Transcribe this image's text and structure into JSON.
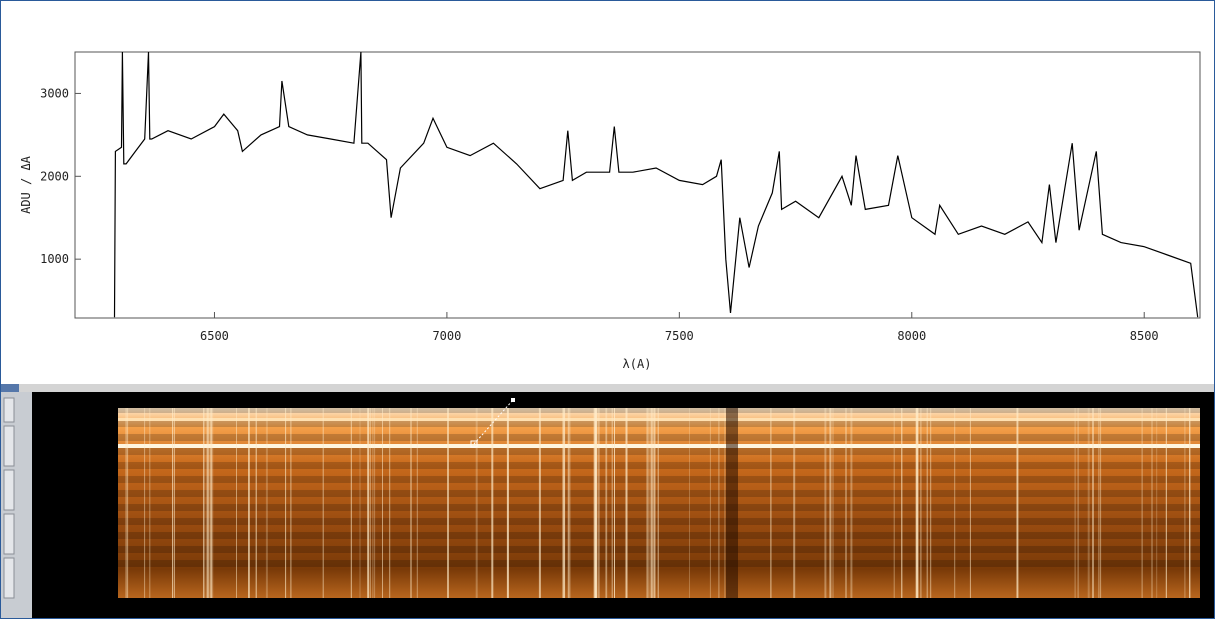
{
  "chart_data": {
    "type": "line",
    "x_label": "λ(A)",
    "y_label": "ADU / ΔA",
    "color": "#000000",
    "xlim": [
      6200,
      8620
    ],
    "ylim": [
      290,
      3500
    ],
    "xticks": [
      6500,
      7000,
      7500,
      8000,
      8500
    ],
    "yticks": [
      1000,
      2000,
      3000
    ],
    "x": [
      6285,
      6287,
      6300,
      6302,
      6305,
      6310,
      6330,
      6350,
      6358,
      6361,
      6365,
      6400,
      6450,
      6500,
      6520,
      6550,
      6560,
      6600,
      6640,
      6645,
      6660,
      6700,
      6750,
      6800,
      6815,
      6817,
      6830,
      6850,
      6870,
      6880,
      6900,
      6950,
      6970,
      7000,
      7050,
      7100,
      7150,
      7200,
      7250,
      7260,
      7270,
      7300,
      7350,
      7360,
      7370,
      7400,
      7450,
      7500,
      7550,
      7580,
      7590,
      7600,
      7610,
      7630,
      7650,
      7670,
      7700,
      7715,
      7720,
      7750,
      7800,
      7850,
      7870,
      7880,
      7900,
      7950,
      7970,
      8000,
      8050,
      8060,
      8100,
      8150,
      8200,
      8250,
      8280,
      8296,
      8310,
      8345,
      8360,
      8397,
      8410,
      8450,
      8500,
      8550,
      8600,
      8615
    ],
    "values": [
      300,
      2300,
      2350,
      3500,
      2150,
      2150,
      2300,
      2450,
      3500,
      2450,
      2450,
      2550,
      2450,
      2600,
      2750,
      2550,
      2300,
      2500,
      2600,
      3150,
      2600,
      2500,
      2450,
      2400,
      3500,
      2400,
      2400,
      2300,
      2200,
      1500,
      2100,
      2400,
      2700,
      2350,
      2250,
      2400,
      2150,
      1850,
      1950,
      2550,
      1950,
      2050,
      2050,
      2600,
      2050,
      2050,
      2100,
      1950,
      1900,
      2000,
      2200,
      1000,
      350,
      1500,
      900,
      1400,
      1800,
      2300,
      1600,
      1700,
      1500,
      2000,
      1650,
      2250,
      1600,
      1650,
      2250,
      1500,
      1300,
      1650,
      1300,
      1400,
      1300,
      1450,
      1200,
      1900,
      1200,
      2400,
      1350,
      2300,
      1300,
      1200,
      1150,
      1050,
      950,
      300
    ]
  }
}
